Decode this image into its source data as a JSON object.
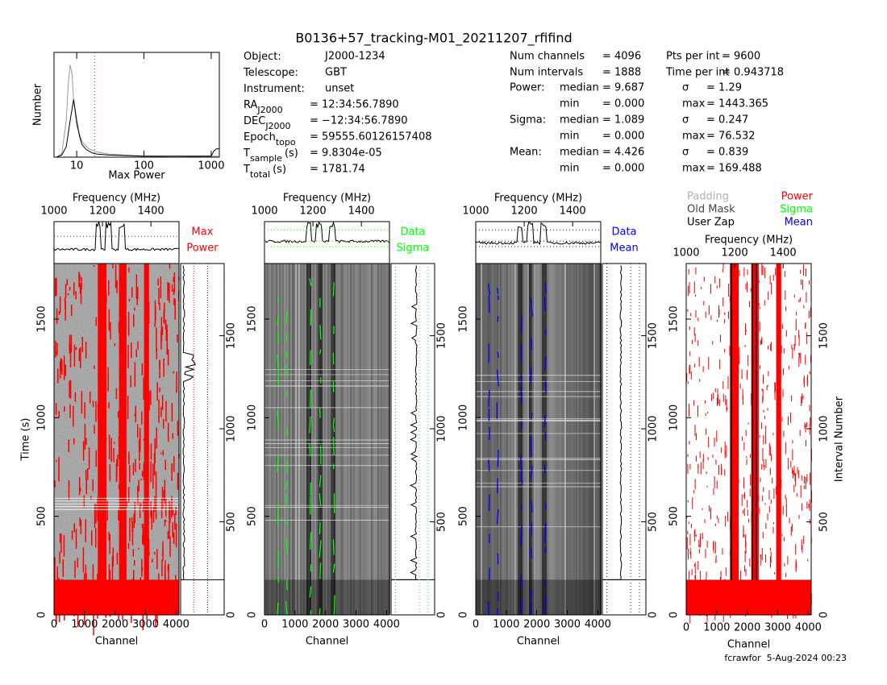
{
  "title": "B0136+57_tracking-M01_20211207_rfifind",
  "info": [
    {
      "label": "Object:",
      "value": "J2000-1234"
    },
    {
      "label": "Telescope:",
      "value": "GBT"
    },
    {
      "label": "Instrument:",
      "value": "unset"
    },
    {
      "label": "RA",
      "sub": "J2000",
      "value": "= 12:34:56.7890"
    },
    {
      "label": "DEC",
      "sub": "J2000",
      "value": "= −12:34:56.7890"
    },
    {
      "label": "Epoch",
      "sub": "topo",
      "value": "= 59555.60126157408"
    },
    {
      "label": "T",
      "sub": "sample",
      "unit": "(s)",
      "value": "= 9.8304e-05"
    },
    {
      "label": "T",
      "sub": "total",
      "unit": "(s)",
      "value": "= 1781.74"
    }
  ],
  "summary": [
    [
      "Num channels",
      "= 4096",
      "Pts per int",
      "= 9600"
    ],
    [
      "Num intervals",
      "= 1888",
      "Time per int",
      "= 0.943718"
    ]
  ],
  "stats": [
    {
      "name": "Power:",
      "rows": [
        [
          "median",
          "= 9.687",
          "σ",
          "= 1.29"
        ],
        [
          "min",
          "= 0.000",
          "max",
          "= 1443.365"
        ]
      ]
    },
    {
      "name": "Sigma:",
      "rows": [
        [
          "median",
          "= 1.089",
          "σ",
          "= 0.247"
        ],
        [
          "min",
          "= 0.000",
          "max",
          "= 76.532"
        ]
      ]
    },
    {
      "name": "Mean:",
      "rows": [
        [
          "median",
          "= 4.426",
          "σ",
          "= 0.839"
        ],
        [
          "min",
          "= 0.000",
          "max",
          "= 169.488"
        ]
      ]
    }
  ],
  "histogram": {
    "type": "line",
    "xlabel": "Max Power",
    "ylabel": "Number",
    "log_x": true,
    "xlim": [
      4.6,
      1320
    ],
    "xticks": [
      10,
      100,
      1000
    ],
    "ylim": [
      0,
      100
    ],
    "threshold": 18.4,
    "threshold_color": "#ff0000",
    "series": [
      {
        "color": "#999999",
        "x": [
          5,
          6,
          7,
          7.5,
          8,
          8.5,
          9,
          10,
          12,
          15,
          20,
          30,
          50,
          100,
          300,
          1000,
          1320
        ],
        "values": [
          0,
          3,
          35,
          70,
          88,
          80,
          55,
          30,
          15,
          8,
          5,
          3,
          2,
          1,
          0.5,
          1,
          1
        ]
      },
      {
        "color": "#000000",
        "x": [
          5,
          6,
          7,
          8,
          9,
          10,
          11,
          12,
          14,
          17,
          20,
          30,
          100,
          1000,
          1100,
          1200,
          1320
        ],
        "values": [
          0,
          2,
          10,
          35,
          55,
          35,
          20,
          12,
          7,
          4,
          3,
          2,
          1,
          1,
          6,
          8,
          8
        ]
      }
    ]
  },
  "axes": {
    "freq_label": "Frequency (MHz)",
    "freq_lim": [
      1000,
      1516
    ],
    "freq_ticks": [
      1000,
      1200,
      1400
    ],
    "channel_label": "Channel",
    "channel_lim": [
      0,
      4096
    ],
    "channel_ticks": [
      0,
      1000,
      2000,
      3000,
      4000
    ],
    "time_label": "Time (s)",
    "time_lim": [
      0,
      1781.74
    ],
    "time_ticks": [
      0,
      500,
      1000,
      1500
    ],
    "interval_label": "Interval Number",
    "interval_lim": [
      0,
      1888
    ],
    "interval_ticks": [
      0,
      500,
      1000,
      1500
    ]
  },
  "panels": [
    {
      "legend": [
        "Max",
        "Power"
      ],
      "color": "#ff0000"
    },
    {
      "legend": [
        "Data",
        "Sigma"
      ],
      "color": "#00ff00"
    },
    {
      "legend": [
        "Data",
        "Mean"
      ],
      "color": "#0000ff"
    }
  ],
  "mask_legend": [
    {
      "text": "Padding",
      "color": "#b0b0b0"
    },
    {
      "text": "Power",
      "color": "#ff0000"
    },
    {
      "text": "Old Mask",
      "color": "#444444"
    },
    {
      "text": "Sigma",
      "color": "#00ff00"
    },
    {
      "text": "User Zap",
      "color": "#000000"
    },
    {
      "text": "Mean",
      "color": "#0000ff"
    }
  ],
  "footer": "fcrawfor  5-Aug-2024 00:23"
}
